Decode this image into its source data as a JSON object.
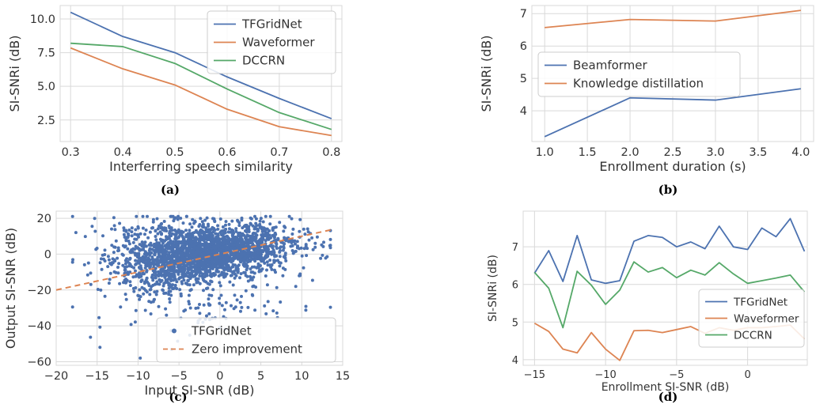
{
  "chart_data": [
    {
      "type": "line",
      "caption": "(a)",
      "xlabel": "Interferring speech similarity",
      "ylabel": "SI-SNRi (dB)",
      "x": [
        0.3,
        0.4,
        0.5,
        0.6,
        0.7,
        0.8
      ],
      "xticks": [
        "0.3",
        "0.4",
        "0.5",
        "0.6",
        "0.7",
        "0.8"
      ],
      "yticks": [
        "2.5",
        "5.0",
        "7.5",
        "10.0"
      ],
      "xlim": [
        0.28,
        0.82
      ],
      "ylim": [
        0.9,
        11.0
      ],
      "grid": true,
      "legend": "top-right",
      "series": [
        {
          "name": "TFGridNet",
          "color": "#4c72b0",
          "values": [
            10.5,
            8.7,
            7.5,
            5.7,
            4.1,
            2.6
          ]
        },
        {
          "name": "Waveformer",
          "color": "#dd8452",
          "values": [
            7.85,
            6.3,
            5.1,
            3.3,
            2.0,
            1.35
          ]
        },
        {
          "name": "DCCRN",
          "color": "#55a868",
          "values": [
            8.2,
            7.95,
            6.7,
            4.8,
            3.05,
            1.8
          ]
        }
      ]
    },
    {
      "type": "line",
      "caption": "(b)",
      "xlabel": "Enrollment duration (s)",
      "ylabel": "SI-SNRi (dB)",
      "x": [
        1.0,
        2.0,
        3.0,
        4.0
      ],
      "xticks": [
        "1.0",
        "1.5",
        "2.0",
        "2.5",
        "3.0",
        "3.5",
        "4.0"
      ],
      "yticks": [
        "4",
        "5",
        "6",
        "7"
      ],
      "xlim": [
        0.85,
        4.15
      ],
      "ylim": [
        3.05,
        7.25
      ],
      "grid": true,
      "legend": "center-left",
      "series": [
        {
          "name": "Beamformer",
          "color": "#4c72b0",
          "values": [
            3.2,
            4.4,
            4.33,
            4.68
          ]
        },
        {
          "name": "Knowledge distillation",
          "color": "#dd8452",
          "values": [
            6.57,
            6.82,
            6.77,
            7.1
          ]
        }
      ]
    },
    {
      "type": "scatter",
      "caption": "(c)",
      "xlabel": "Input SI-SNR (dB)",
      "ylabel": "Output SI-SNR (dB)",
      "xticks": [
        "−20",
        "−15",
        "−10",
        "−5",
        "0",
        "5",
        "10",
        "15"
      ],
      "yticks": [
        "−60",
        "−40",
        "−20",
        "0",
        "20"
      ],
      "xlim": [
        -20,
        15
      ],
      "ylim": [
        -62,
        24
      ],
      "grid": true,
      "legend": "bottom-right",
      "series": [
        {
          "name": "TFGridNet",
          "color": "#4c72b0",
          "kind": "points",
          "count": 2600
        },
        {
          "name": "Zero improvement",
          "color": "#dd8452",
          "kind": "dashed-line",
          "x": [
            -20,
            14
          ],
          "y": [
            -20,
            14
          ]
        }
      ]
    },
    {
      "type": "line",
      "caption": "(d)",
      "xlabel": "Enrollment SI-SNR (dB)",
      "ylabel": "SI-SNRi (dB)",
      "x": [
        -15,
        -14,
        -13,
        -12,
        -11,
        -10,
        -9,
        -8,
        -7,
        -6,
        -5,
        -4,
        -3,
        -2,
        -1,
        0,
        1,
        2,
        3,
        4
      ],
      "xticks": [
        "−15",
        "−10",
        "−5",
        "0"
      ],
      "yticks": [
        "4",
        "5",
        "6",
        "7"
      ],
      "xlim": [
        -15.8,
        4.2
      ],
      "ylim": [
        3.85,
        7.95
      ],
      "grid": true,
      "legend": "bottom-right",
      "series": [
        {
          "name": "TFGridNet",
          "color": "#4c72b0",
          "values": [
            6.3,
            6.9,
            6.08,
            7.3,
            6.12,
            6.03,
            6.1,
            7.15,
            7.3,
            7.25,
            7.0,
            7.13,
            6.95,
            7.55,
            7.0,
            6.93,
            7.5,
            7.27,
            7.75,
            6.88
          ]
        },
        {
          "name": "Waveformer",
          "color": "#dd8452",
          "values": [
            4.97,
            4.75,
            4.28,
            4.18,
            4.72,
            4.28,
            3.98,
            4.77,
            4.78,
            4.72,
            4.8,
            4.88,
            4.7,
            4.85,
            4.78,
            4.85,
            4.85,
            4.88,
            4.92,
            4.55
          ]
        },
        {
          "name": "DCCRN",
          "color": "#55a868",
          "values": [
            6.32,
            5.9,
            4.85,
            6.35,
            5.98,
            5.47,
            5.85,
            6.6,
            6.33,
            6.45,
            6.18,
            6.38,
            6.25,
            6.58,
            6.28,
            6.03,
            6.1,
            6.17,
            6.25,
            5.8
          ]
        }
      ]
    }
  ]
}
